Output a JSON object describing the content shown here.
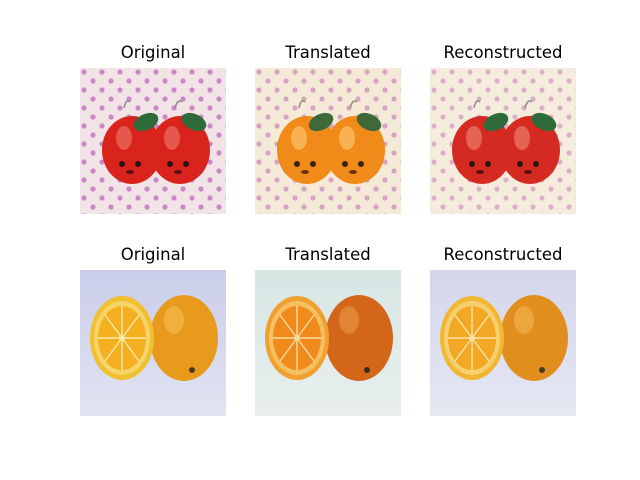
{
  "figure": {
    "rows": [
      {
        "subject": "red apple charms on polka-dot background",
        "panels": [
          {
            "title": "Original"
          },
          {
            "title": "Translated"
          },
          {
            "title": "Reconstructed"
          }
        ]
      },
      {
        "subject": "orange halves on light background",
        "panels": [
          {
            "title": "Original"
          },
          {
            "title": "Translated"
          },
          {
            "title": "Reconstructed"
          }
        ]
      }
    ]
  }
}
